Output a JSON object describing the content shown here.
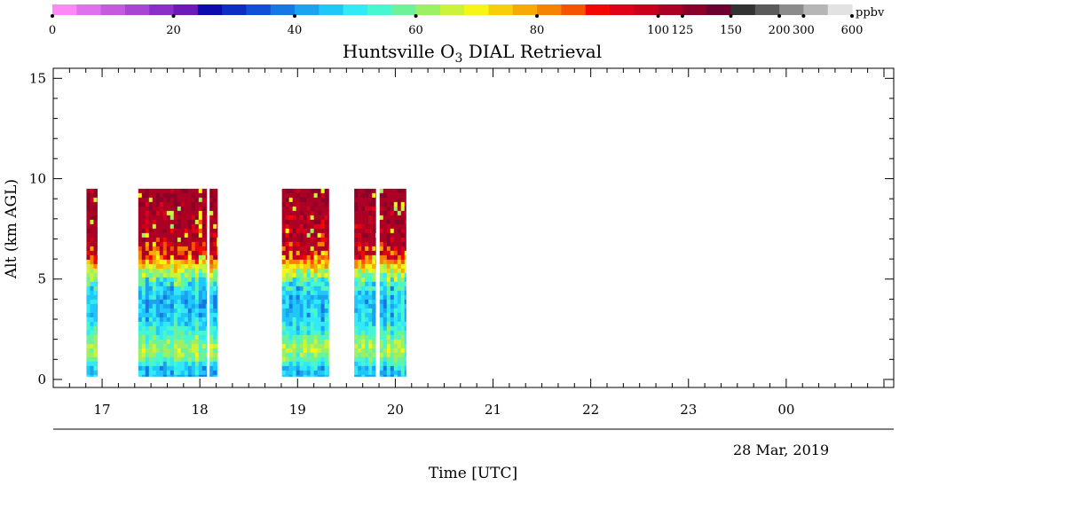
{
  "chart_data": {
    "type": "heatmap",
    "title_prefix": "Huntsville O",
    "title_subscript": "3",
    "title_suffix": " DIAL Retrieval",
    "xlabel": "Time [UTC]",
    "ylabel": "Alt (km AGL)",
    "date_label": "28 Mar, 2019",
    "x_ticks": [
      "17",
      "18",
      "19",
      "20",
      "21",
      "22",
      "23",
      "00"
    ],
    "x_tick_hours": [
      17,
      18,
      19,
      20,
      21,
      22,
      23,
      24
    ],
    "xlim_hours": [
      16.5,
      25.1
    ],
    "y_ticks": [
      "0",
      "5",
      "10",
      "15"
    ],
    "y_tick_values": [
      0,
      5,
      10,
      15
    ],
    "ylim_km": [
      -0.4,
      15.5
    ],
    "grid": false,
    "colorbar": {
      "units": "ppbv",
      "tick_labels": [
        "0",
        "20",
        "40",
        "60",
        "80",
        "100",
        "125",
        "150",
        "200",
        "300",
        "600"
      ],
      "tick_values": [
        0,
        20,
        40,
        60,
        80,
        100,
        125,
        150,
        200,
        300,
        600
      ],
      "colors": [
        "#ff88f7",
        "#e170ee",
        "#c65adf",
        "#a945d3",
        "#8a2fc7",
        "#6e1ab9",
        "#0c0cae",
        "#0e2dc3",
        "#1150d6",
        "#1778e3",
        "#1ba3ef",
        "#20c8fa",
        "#32e9f6",
        "#46f7cf",
        "#6df19a",
        "#9cf064",
        "#ccf23b",
        "#f6f513",
        "#f8cd0a",
        "#f7a905",
        "#f58301",
        "#f45400",
        "#f20800",
        "#e0001a",
        "#c8001e",
        "#ab0024",
        "#8a0028",
        "#6c0031",
        "#323232",
        "#5a5a5a",
        "#8b8b8b",
        "#b6b6b6",
        "#e2e2e2"
      ]
    },
    "data_blocks": [
      {
        "t_start": 16.84,
        "t_end": 16.95,
        "alt_top_km": 9.5,
        "alt_bottom_km": 0.15
      },
      {
        "t_start": 17.37,
        "t_end": 18.07,
        "alt_top_km": 9.5,
        "alt_bottom_km": 0.15
      },
      {
        "t_start": 18.1,
        "t_end": 18.18,
        "alt_top_km": 9.5,
        "alt_bottom_km": 0.15
      },
      {
        "t_start": 18.84,
        "t_end": 19.32,
        "alt_top_km": 9.5,
        "alt_bottom_km": 0.15
      },
      {
        "t_start": 19.58,
        "t_end": 19.8,
        "alt_top_km": 9.5,
        "alt_bottom_km": 0.15
      },
      {
        "t_start": 19.84,
        "t_end": 20.11,
        "alt_top_km": 9.5,
        "alt_bottom_km": 0.15
      }
    ],
    "profile": [
      {
        "alt_km": 0.15,
        "ppbv": 45
      },
      {
        "alt_km": 0.6,
        "ppbv": 46
      },
      {
        "alt_km": 1.0,
        "ppbv": 58
      },
      {
        "alt_km": 1.6,
        "ppbv": 64
      },
      {
        "alt_km": 2.2,
        "ppbv": 55
      },
      {
        "alt_km": 3.0,
        "ppbv": 47
      },
      {
        "alt_km": 4.0,
        "ppbv": 45
      },
      {
        "alt_km": 4.8,
        "ppbv": 52
      },
      {
        "alt_km": 5.5,
        "ppbv": 68
      },
      {
        "alt_km": 6.2,
        "ppbv": 90
      },
      {
        "alt_km": 7.0,
        "ppbv": 110
      },
      {
        "alt_km": 8.0,
        "ppbv": 112
      },
      {
        "alt_km": 9.0,
        "ppbv": 118
      },
      {
        "alt_km": 9.5,
        "ppbv": 120
      }
    ]
  }
}
